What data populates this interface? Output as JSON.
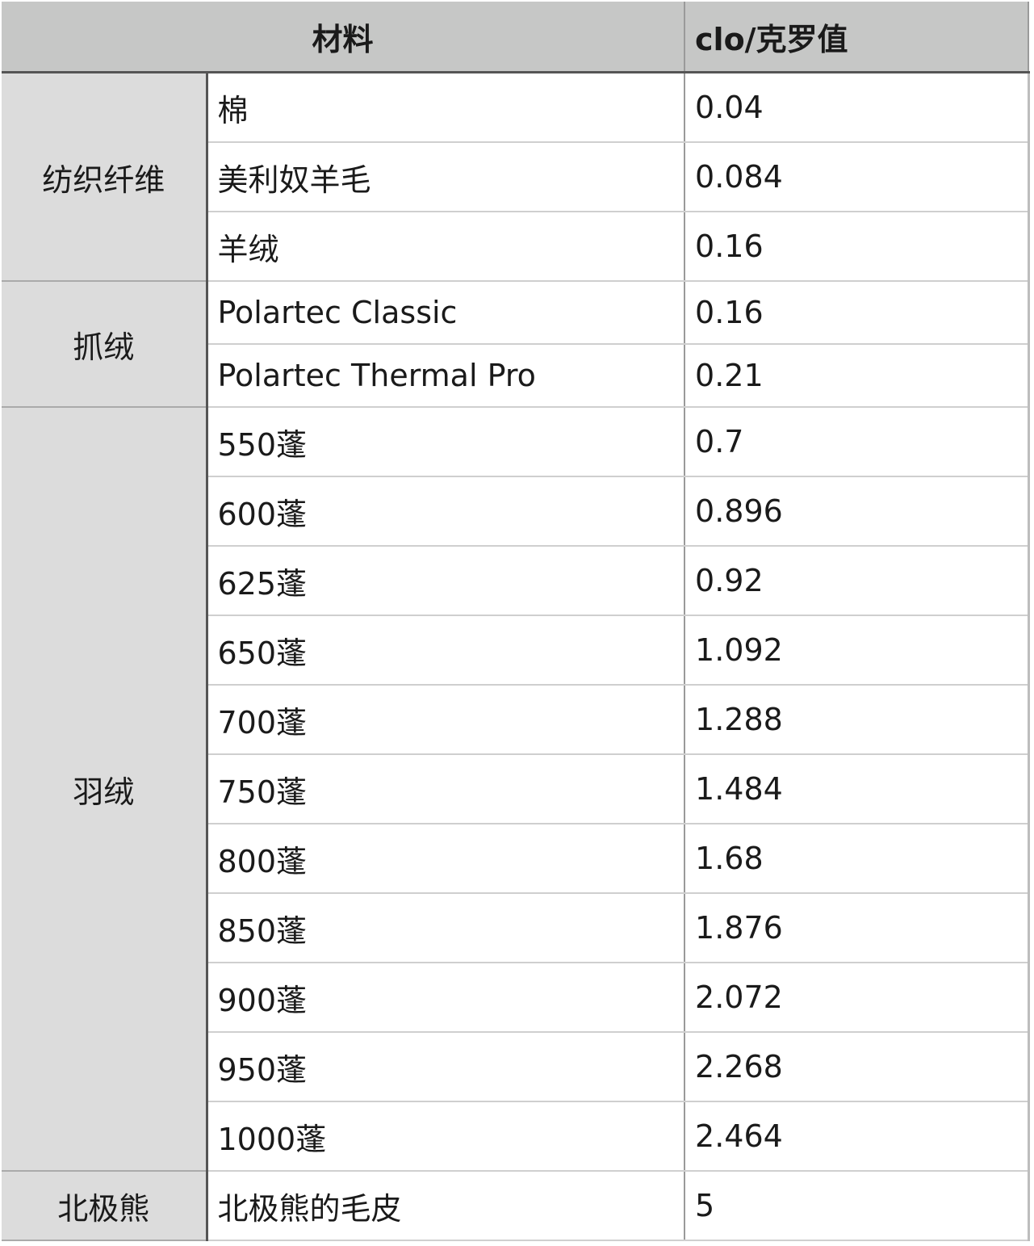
{
  "header": {
    "material": "材料",
    "clo": "clo/克罗值"
  },
  "groups": [
    {
      "category": "纺织纤维",
      "rows": [
        {
          "name": "棉",
          "clo": "0.04"
        },
        {
          "name": "美利奴羊毛",
          "clo": "0.084"
        },
        {
          "name": "羊绒",
          "clo": "0.16"
        }
      ]
    },
    {
      "category": "抓绒",
      "rows": [
        {
          "name": "Polartec Classic",
          "clo": "0.16"
        },
        {
          "name": "Polartec Thermal Pro",
          "clo": "0.21"
        }
      ]
    },
    {
      "category": "羽绒",
      "rows": [
        {
          "name": "550蓬",
          "clo": "0.7"
        },
        {
          "name": "600蓬",
          "clo": "0.896"
        },
        {
          "name": "625蓬",
          "clo": "0.92"
        },
        {
          "name": "650蓬",
          "clo": "1.092"
        },
        {
          "name": "700蓬",
          "clo": "1.288"
        },
        {
          "name": "750蓬",
          "clo": "1.484"
        },
        {
          "name": "800蓬",
          "clo": "1.68"
        },
        {
          "name": "850蓬",
          "clo": "1.876"
        },
        {
          "name": "900蓬",
          "clo": "2.072"
        },
        {
          "name": "950蓬",
          "clo": "2.268"
        },
        {
          "name": "1000蓬",
          "clo": "2.464"
        }
      ]
    },
    {
      "category": "北极熊",
      "rows": [
        {
          "name": "北极熊的毛皮",
          "clo": "5"
        }
      ]
    }
  ]
}
